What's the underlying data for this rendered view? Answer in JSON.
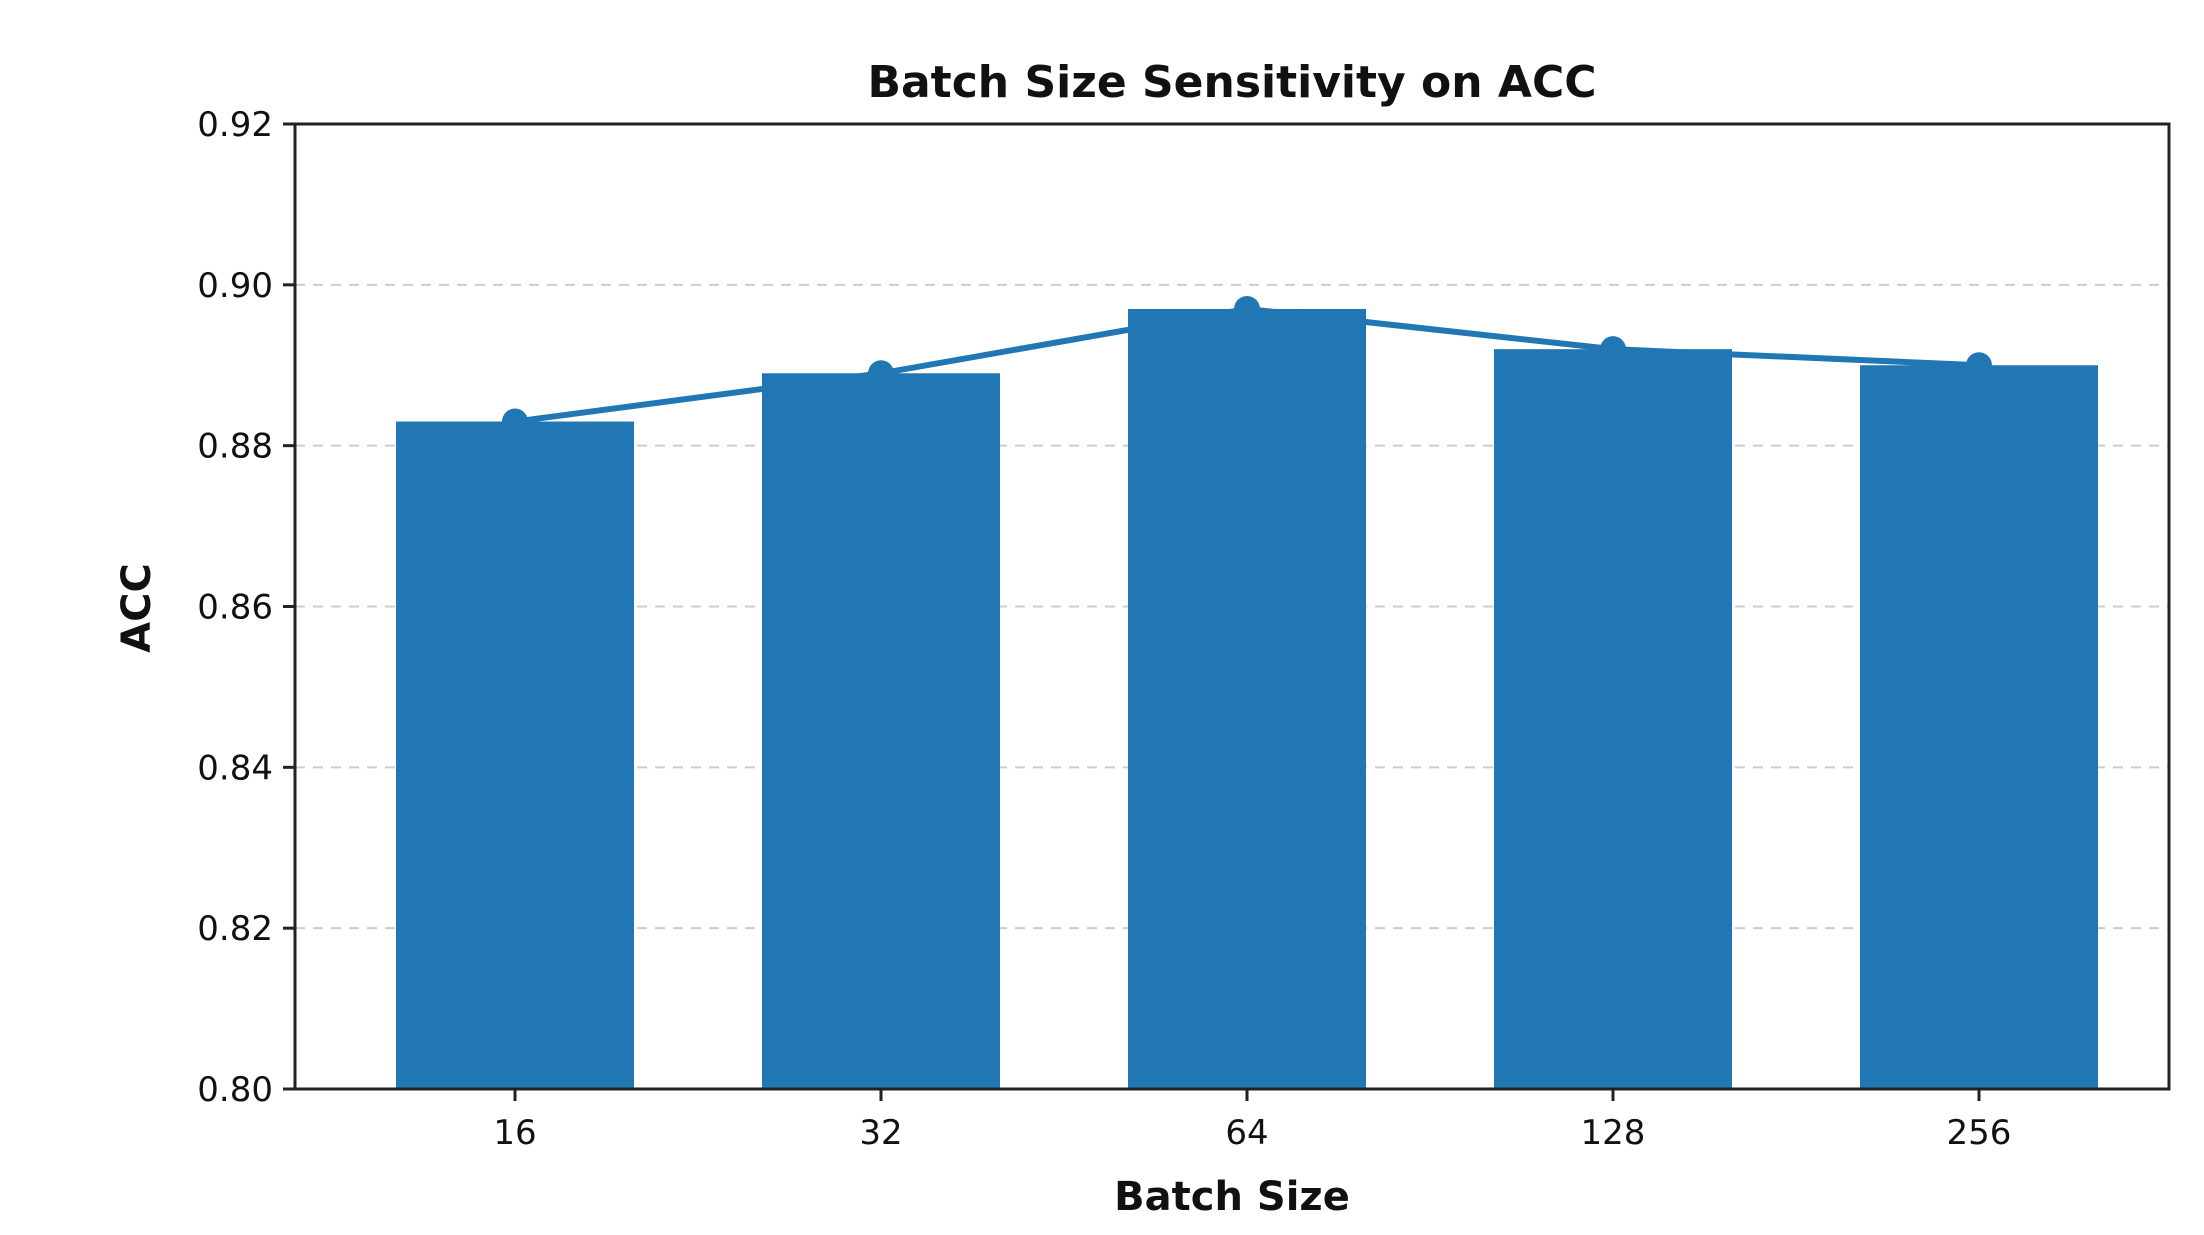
{
  "chart_data": {
    "type": "bar",
    "title": "Batch Size Sensitivity on ACC",
    "xlabel": "Batch Size",
    "ylabel": "ACC",
    "categories": [
      "16",
      "32",
      "64",
      "128",
      "256"
    ],
    "values": [
      0.883,
      0.889,
      0.897,
      0.892,
      0.89
    ],
    "overlay_line": true,
    "ylim": [
      0.8,
      0.92
    ],
    "yticks": [
      "0.80",
      "0.82",
      "0.84",
      "0.86",
      "0.88",
      "0.90",
      "0.92"
    ],
    "grid": "horizontal dashed",
    "colors": {
      "bar": "#2077b4",
      "line": "#2077b4",
      "grid": "#cccccc",
      "axes": "#222222"
    }
  }
}
